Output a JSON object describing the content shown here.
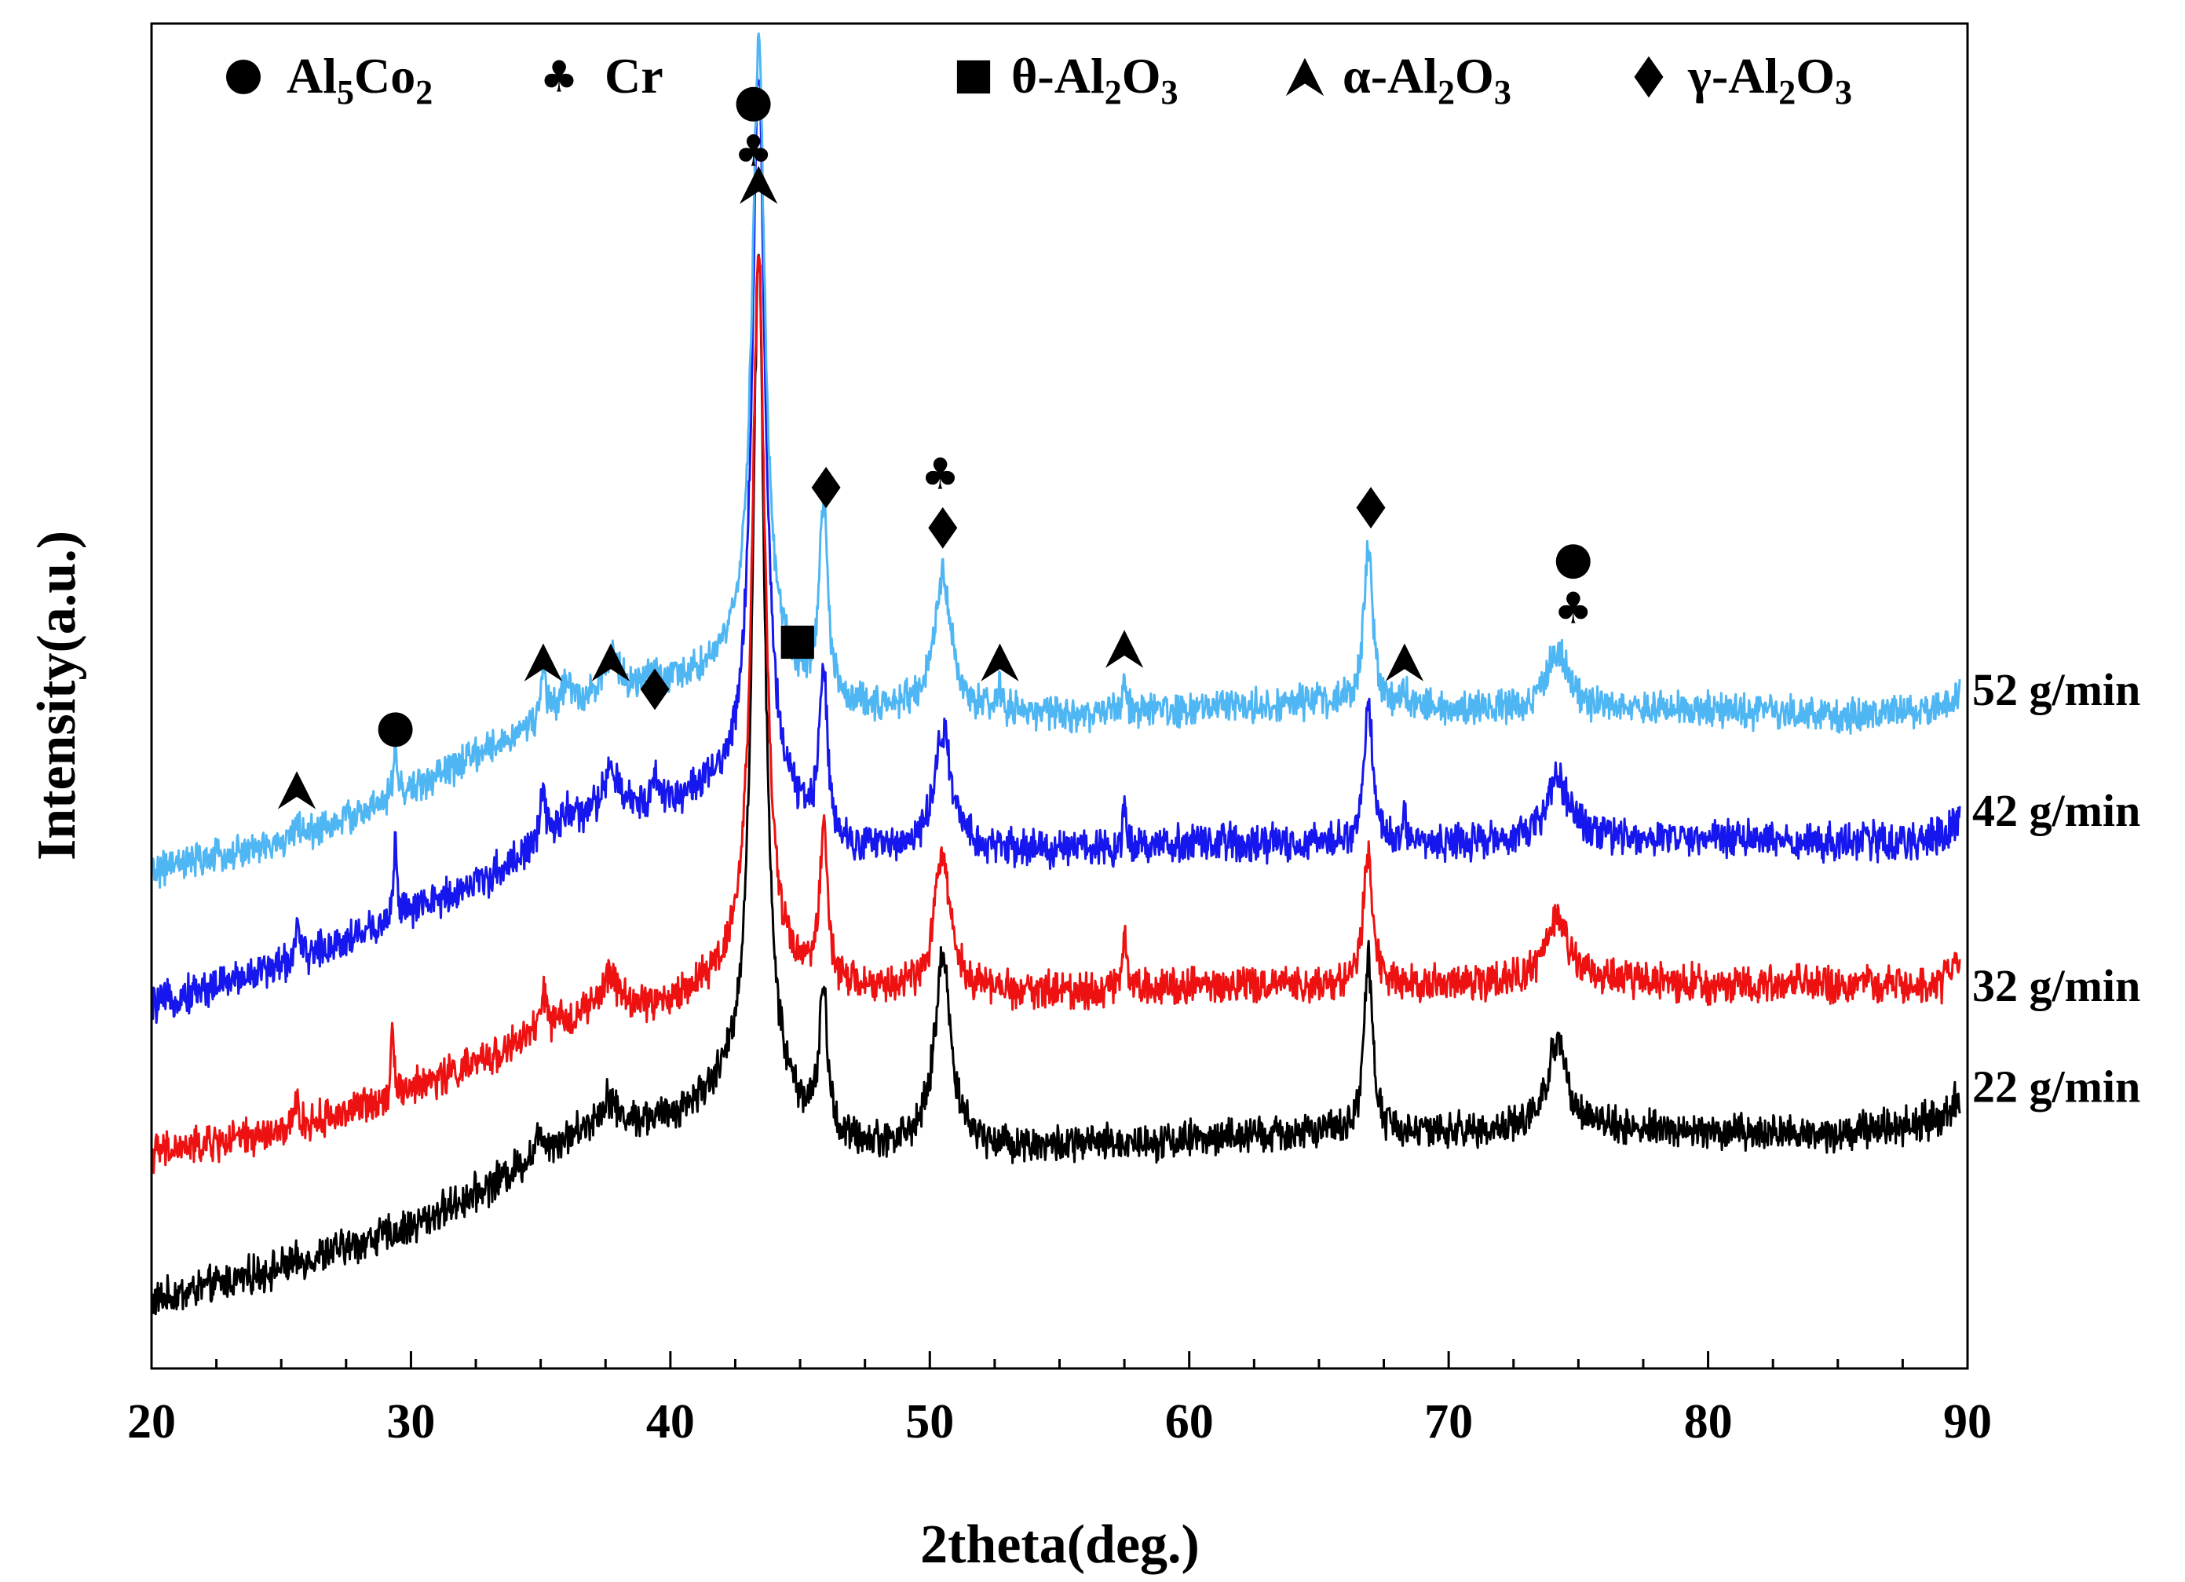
{
  "chart_data": {
    "type": "line",
    "xlabel": "2theta(deg.)",
    "ylabel": "Intensity(a.u.)",
    "xlim": [
      20,
      90
    ],
    "ylim": [
      0,
      100
    ],
    "xticks": [
      20,
      30,
      40,
      50,
      60,
      70,
      80,
      90
    ],
    "x_minor_step": 2.5,
    "yticks_shown": false,
    "legend": {
      "placement": "top",
      "items": [
        {
          "name": "al5co2",
          "marker": "circle",
          "parts": [
            {
              "t": "Al",
              "s": "n"
            },
            {
              "t": "5",
              "s": "sub"
            },
            {
              "t": "Co",
              "s": "n"
            },
            {
              "t": "2",
              "s": "sub"
            }
          ]
        },
        {
          "name": "cr",
          "marker": "club",
          "parts": [
            {
              "t": "Cr",
              "s": "n"
            }
          ]
        },
        {
          "name": "theta-al2o3",
          "marker": "square",
          "parts": [
            {
              "t": "θ-Al",
              "s": "n"
            },
            {
              "t": "2",
              "s": "sub"
            },
            {
              "t": "O",
              "s": "n"
            },
            {
              "t": "3",
              "s": "sub"
            }
          ]
        },
        {
          "name": "alpha-al2o3",
          "marker": "arrowhead",
          "parts": [
            {
              "t": "α-Al",
              "s": "n"
            },
            {
              "t": "2",
              "s": "sub"
            },
            {
              "t": "O",
              "s": "n"
            },
            {
              "t": "3",
              "s": "sub"
            }
          ]
        },
        {
          "name": "gamma-al2o3",
          "marker": "diamond",
          "parts": [
            {
              "t": "γ-Al",
              "s": "n"
            },
            {
              "t": "2",
              "s": "sub"
            },
            {
              "t": "O",
              "s": "n"
            },
            {
              "t": "3",
              "s": "sub"
            }
          ]
        }
      ]
    },
    "series": [
      {
        "name": "22 g/min",
        "color": "#000000",
        "noise": 1.1,
        "baseline": [
          [
            20,
            5
          ],
          [
            25,
            7.5
          ],
          [
            30,
            10.5
          ],
          [
            33,
            13.5
          ],
          [
            35,
            16
          ],
          [
            37,
            18
          ],
          [
            40,
            18.5
          ],
          [
            42,
            20.5
          ],
          [
            43,
            22
          ],
          [
            46,
            16.5
          ],
          [
            50,
            16.5
          ],
          [
            55,
            16.5
          ],
          [
            60,
            17
          ],
          [
            65,
            17.5
          ],
          [
            70,
            17.5
          ],
          [
            75,
            18
          ],
          [
            80,
            17.5
          ],
          [
            85,
            17.5
          ],
          [
            89,
            18.5
          ],
          [
            90,
            21
          ]
        ],
        "peaks": [
          [
            43.4,
            62,
            0.28
          ],
          [
            45.9,
            11,
            0.2
          ],
          [
            50.5,
            14,
            0.38
          ],
          [
            66.9,
            13,
            0.2
          ],
          [
            74.2,
            6.5,
            0.45
          ],
          [
            37.6,
            2,
            0.3
          ],
          [
            35.0,
            1.5,
            0.2
          ]
        ]
      },
      {
        "name": "32 g/min",
        "color": "#ee1111",
        "noise": 1.1,
        "baseline": [
          [
            20,
            16
          ],
          [
            25,
            17.5
          ],
          [
            29,
            20
          ],
          [
            33,
            23
          ],
          [
            35,
            25
          ],
          [
            37,
            26.5
          ],
          [
            40,
            27
          ],
          [
            42,
            29
          ],
          [
            43,
            30
          ],
          [
            46,
            28
          ],
          [
            50,
            28
          ],
          [
            55,
            28
          ],
          [
            60,
            28.5
          ],
          [
            65,
            28.5
          ],
          [
            70,
            28.5
          ],
          [
            75,
            29
          ],
          [
            80,
            28.5
          ],
          [
            85,
            28.5
          ],
          [
            89,
            28.5
          ],
          [
            90,
            31
          ]
        ],
        "peaks": [
          [
            43.4,
            53,
            0.3
          ],
          [
            45.9,
            11,
            0.2
          ],
          [
            50.5,
            10,
            0.38
          ],
          [
            57.5,
            5,
            0.08
          ],
          [
            66.9,
            10,
            0.22
          ],
          [
            74.2,
            4.5,
            0.5
          ],
          [
            37.7,
            2.5,
            0.35
          ],
          [
            35.1,
            3,
            0.12
          ],
          [
            29.3,
            5,
            0.08
          ],
          [
            25.6,
            2.5,
            0.07
          ]
        ]
      },
      {
        "name": "42 g/min",
        "color": "#1616ee",
        "noise": 1.1,
        "baseline": [
          [
            20,
            27
          ],
          [
            25,
            30
          ],
          [
            29,
            33
          ],
          [
            33,
            36.5
          ],
          [
            35,
            39
          ],
          [
            37,
            41
          ],
          [
            40,
            42
          ],
          [
            42,
            43
          ],
          [
            43,
            44
          ],
          [
            46,
            38.5
          ],
          [
            50,
            38.5
          ],
          [
            55,
            38.5
          ],
          [
            60,
            39
          ],
          [
            65,
            39
          ],
          [
            70,
            39
          ],
          [
            75,
            39.5
          ],
          [
            80,
            39.5
          ],
          [
            85,
            39
          ],
          [
            89,
            39.5
          ],
          [
            90,
            42
          ]
        ],
        "peaks": [
          [
            43.4,
            53,
            0.3
          ],
          [
            45.9,
            13,
            0.2
          ],
          [
            50.5,
            9,
            0.38
          ],
          [
            57.5,
            3,
            0.08
          ],
          [
            66.9,
            10.5,
            0.2
          ],
          [
            68.3,
            2,
            0.08
          ],
          [
            74.2,
            4.5,
            0.5
          ],
          [
            37.7,
            3,
            0.35
          ],
          [
            39.4,
            2,
            0.15
          ],
          [
            36.0,
            1.5,
            0.2
          ],
          [
            35.1,
            3.5,
            0.12
          ],
          [
            29.4,
            6,
            0.08
          ],
          [
            25.6,
            3,
            0.07
          ]
        ]
      },
      {
        "name": "52 g/min",
        "color": "#4fb6f4",
        "noise": 1.0,
        "baseline": [
          [
            20,
            37
          ],
          [
            25,
            39
          ],
          [
            29,
            42
          ],
          [
            33,
            46
          ],
          [
            35,
            48
          ],
          [
            37,
            50
          ],
          [
            40,
            51
          ],
          [
            42,
            52
          ],
          [
            43,
            53
          ],
          [
            46,
            49
          ],
          [
            50,
            49
          ],
          [
            55,
            48.5
          ],
          [
            60,
            49
          ],
          [
            65,
            49.5
          ],
          [
            70,
            49
          ],
          [
            75,
            49
          ],
          [
            80,
            49
          ],
          [
            85,
            48.5
          ],
          [
            89,
            49
          ],
          [
            90,
            51
          ]
        ],
        "peaks": [
          [
            43.4,
            46,
            0.3
          ],
          [
            45.9,
            15,
            0.2
          ],
          [
            50.5,
            10,
            0.38
          ],
          [
            52.7,
            1.5,
            0.1
          ],
          [
            57.5,
            2.5,
            0.08
          ],
          [
            66.9,
            12,
            0.2
          ],
          [
            68.3,
            1.5,
            0.08
          ],
          [
            74.2,
            4.5,
            0.45
          ],
          [
            37.7,
            2.5,
            0.35
          ],
          [
            39.4,
            1,
            0.15
          ],
          [
            36.0,
            2,
            0.2
          ],
          [
            35.1,
            3.5,
            0.12
          ],
          [
            29.4,
            4,
            0.08
          ],
          [
            25.6,
            2,
            0.07
          ]
        ]
      }
    ],
    "series_labels": [
      {
        "text": "52 g/min",
        "y": 50.5
      },
      {
        "text": "42 g/min",
        "y": 41.5
      },
      {
        "text": "32 g/min",
        "y": 28.5
      },
      {
        "text": "22 g/min",
        "y": 21
      }
    ],
    "annotations": [
      {
        "x": 25.6,
        "y": 43,
        "sym": "arrowhead"
      },
      {
        "x": 29.4,
        "y": 47.5,
        "sym": "circle"
      },
      {
        "x": 35.1,
        "y": 52.5,
        "sym": "arrowhead"
      },
      {
        "x": 37.7,
        "y": 52.5,
        "sym": "arrowhead"
      },
      {
        "x": 39.4,
        "y": 50.5,
        "sym": "diamond"
      },
      {
        "x": 43.2,
        "y": 94,
        "sym": "circle"
      },
      {
        "x": 43.2,
        "y": 90.5,
        "sym": "club"
      },
      {
        "x": 43.4,
        "y": 88,
        "sym": "arrowhead"
      },
      {
        "x": 44.9,
        "y": 54,
        "sym": "square"
      },
      {
        "x": 46.0,
        "y": 65.5,
        "sym": "diamond"
      },
      {
        "x": 50.4,
        "y": 66.5,
        "sym": "club"
      },
      {
        "x": 50.5,
        "y": 62.5,
        "sym": "diamond"
      },
      {
        "x": 52.7,
        "y": 52.5,
        "sym": "arrowhead"
      },
      {
        "x": 57.5,
        "y": 53.5,
        "sym": "arrowhead"
      },
      {
        "x": 67.0,
        "y": 64,
        "sym": "diamond"
      },
      {
        "x": 68.3,
        "y": 52.5,
        "sym": "arrowhead"
      },
      {
        "x": 74.8,
        "y": 60,
        "sym": "circle"
      },
      {
        "x": 74.8,
        "y": 56.5,
        "sym": "club"
      }
    ]
  }
}
